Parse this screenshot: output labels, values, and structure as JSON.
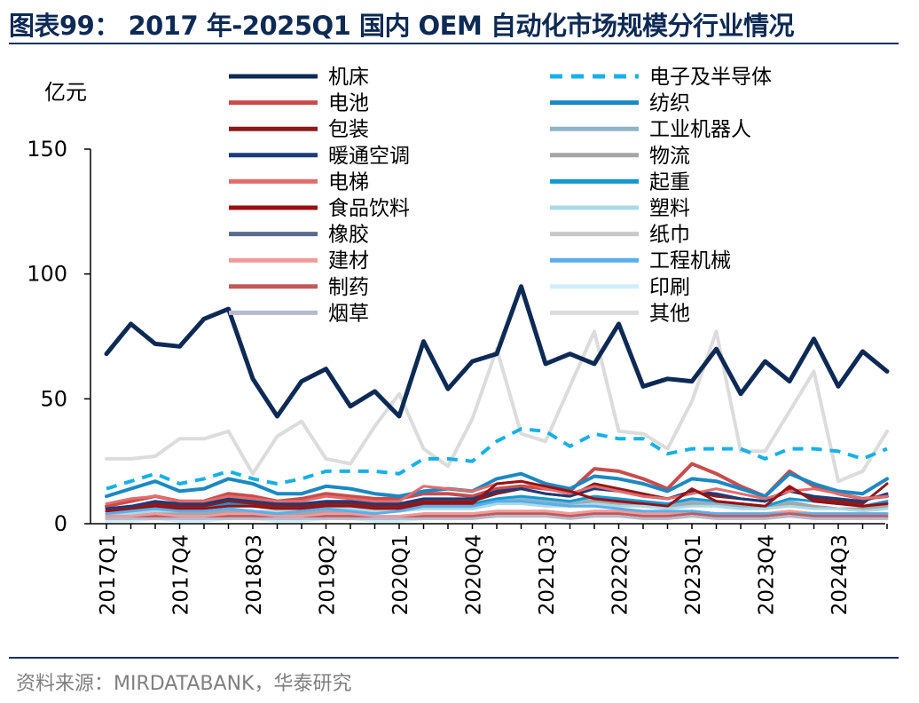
{
  "header": {
    "title": "图表99： 2017 年-2025Q1 国内 OEM 自动化市场规模分行业情况"
  },
  "footer": {
    "source": "资料来源：MIRDATABANK，华泰研究"
  },
  "chart_data": {
    "type": "line",
    "ylabel": "亿元",
    "ylim": [
      0,
      150
    ],
    "yticks": [
      0,
      50,
      100,
      150
    ],
    "legend_position": "top",
    "categories": [
      "2017Q1",
      "2017Q2",
      "2017Q3",
      "2017Q4",
      "2018Q1",
      "2018Q2",
      "2018Q3",
      "2018Q4",
      "2019Q1",
      "2019Q2",
      "2019Q3",
      "2019Q4",
      "2020Q1",
      "2020Q2",
      "2020Q3",
      "2020Q4",
      "2021Q1",
      "2021Q2",
      "2021Q3",
      "2021Q4",
      "2022Q1",
      "2022Q2",
      "2022Q3",
      "2022Q4",
      "2023Q1",
      "2023Q2",
      "2023Q3",
      "2023Q4",
      "2024Q1",
      "2024Q2",
      "2024Q3",
      "2024Q4",
      "2025Q1"
    ],
    "xtick_labels": [
      "2017Q1",
      "2017Q4",
      "2018Q3",
      "2019Q2",
      "2020Q1",
      "2020Q4",
      "2021Q3",
      "2022Q2",
      "2023Q1",
      "2023Q4",
      "2024Q3"
    ],
    "series": [
      {
        "name": "机床",
        "color": "#0d2a55",
        "width": 5,
        "dash": "",
        "values": [
          68,
          80,
          72,
          71,
          82,
          86,
          58,
          43,
          57,
          62,
          47,
          53,
          43,
          73,
          54,
          65,
          68,
          95,
          64,
          68,
          64,
          80,
          55,
          58,
          57,
          70,
          52,
          65,
          57,
          74,
          55,
          69,
          61
        ]
      },
      {
        "name": "电子及半导体",
        "color": "#17b0e6",
        "width": 4,
        "dash": "12,9",
        "values": [
          14,
          17,
          20,
          16,
          18,
          21,
          18,
          16,
          18,
          21,
          21,
          21,
          20,
          26,
          26,
          25,
          33,
          38,
          37,
          31,
          36,
          34,
          34,
          28,
          30,
          30,
          30,
          26,
          30,
          30,
          29,
          26,
          30
        ]
      },
      {
        "name": "电池",
        "color": "#c94c4c",
        "width": 4,
        "dash": "",
        "values": [
          7,
          9,
          11,
          9,
          9,
          12,
          11,
          9,
          10,
          12,
          11,
          10,
          10,
          12,
          12,
          11,
          14,
          15,
          14,
          13,
          22,
          21,
          18,
          14,
          24,
          20,
          15,
          11,
          21,
          15,
          12,
          10,
          11
        ]
      },
      {
        "name": "纺织",
        "color": "#1b88c2",
        "width": 4,
        "dash": "",
        "values": [
          11,
          14,
          17,
          13,
          14,
          18,
          16,
          12,
          12,
          15,
          14,
          12,
          11,
          13,
          14,
          13,
          18,
          20,
          16,
          14,
          19,
          18,
          16,
          13,
          18,
          17,
          14,
          11,
          20,
          16,
          13,
          12,
          18
        ]
      },
      {
        "name": "包装",
        "color": "#8b1a1a",
        "width": 3,
        "dash": "",
        "values": [
          6,
          7,
          8,
          7,
          7,
          9,
          8,
          7,
          7,
          8,
          8,
          7,
          7,
          9,
          9,
          9,
          12,
          14,
          12,
          11,
          16,
          14,
          12,
          10,
          13,
          11,
          10,
          9,
          14,
          10,
          9,
          8,
          16
        ]
      },
      {
        "name": "工业机器人",
        "color": "#8fb3c6",
        "width": 3,
        "dash": "",
        "values": [
          4,
          5,
          6,
          5,
          5,
          6,
          5,
          4,
          5,
          6,
          6,
          5,
          5,
          7,
          7,
          7,
          9,
          10,
          9,
          8,
          10,
          9,
          8,
          7,
          9,
          8,
          7,
          6,
          9,
          7,
          6,
          6,
          7
        ]
      },
      {
        "name": "暖通空调",
        "color": "#1a3c7a",
        "width": 3,
        "dash": "",
        "values": [
          6,
          7,
          9,
          8,
          8,
          10,
          9,
          8,
          8,
          9,
          9,
          8,
          8,
          10,
          10,
          10,
          13,
          14,
          12,
          11,
          14,
          13,
          11,
          10,
          13,
          12,
          10,
          9,
          13,
          11,
          10,
          9,
          12
        ]
      },
      {
        "name": "物流",
        "color": "#a6a6a6",
        "width": 3,
        "dash": "",
        "values": [
          3,
          4,
          5,
          4,
          4,
          5,
          5,
          4,
          4,
          5,
          5,
          5,
          5,
          6,
          6,
          6,
          8,
          9,
          8,
          7,
          9,
          8,
          7,
          6,
          8,
          7,
          6,
          6,
          8,
          7,
          6,
          6,
          7
        ]
      },
      {
        "name": "电梯",
        "color": "#e56b6b",
        "width": 3,
        "dash": "",
        "values": [
          8,
          10,
          11,
          9,
          9,
          11,
          10,
          9,
          9,
          11,
          10,
          9,
          9,
          15,
          14,
          13,
          16,
          17,
          14,
          12,
          15,
          13,
          11,
          10,
          12,
          14,
          12,
          10,
          13,
          14,
          12,
          10,
          11
        ]
      },
      {
        "name": "起重",
        "color": "#1199d6",
        "width": 3,
        "dash": "",
        "values": [
          5,
          6,
          7,
          6,
          6,
          8,
          7,
          6,
          6,
          7,
          7,
          6,
          6,
          8,
          8,
          8,
          10,
          11,
          10,
          9,
          11,
          10,
          9,
          8,
          10,
          9,
          8,
          7,
          10,
          9,
          8,
          7,
          9
        ]
      },
      {
        "name": "食品饮料",
        "color": "#9c0f0f",
        "width": 3,
        "dash": "",
        "values": [
          5,
          6,
          7,
          6,
          6,
          7,
          7,
          6,
          6,
          7,
          7,
          6,
          6,
          8,
          8,
          8,
          16,
          17,
          15,
          13,
          10,
          9,
          8,
          7,
          14,
          9,
          8,
          7,
          15,
          9,
          8,
          7,
          8
        ]
      },
      {
        "name": "塑料",
        "color": "#a9dbe6",
        "width": 3,
        "dash": "",
        "values": [
          4,
          4,
          5,
          5,
          5,
          6,
          5,
          5,
          5,
          6,
          6,
          5,
          5,
          6,
          6,
          6,
          8,
          8,
          7,
          7,
          8,
          7,
          7,
          6,
          7,
          7,
          6,
          6,
          7,
          6,
          6,
          5,
          6
        ]
      },
      {
        "name": "橡胶",
        "color": "#5a6a8f",
        "width": 3,
        "dash": "",
        "values": [
          3,
          3,
          4,
          3,
          3,
          4,
          4,
          3,
          3,
          4,
          4,
          3,
          3,
          4,
          4,
          4,
          5,
          5,
          5,
          4,
          5,
          5,
          4,
          4,
          5,
          4,
          4,
          4,
          5,
          4,
          4,
          4,
          4
        ]
      },
      {
        "name": "纸巾",
        "color": "#c8c8c8",
        "width": 3,
        "dash": "",
        "values": [
          2,
          3,
          3,
          3,
          3,
          3,
          3,
          3,
          3,
          3,
          3,
          3,
          3,
          4,
          4,
          4,
          5,
          5,
          5,
          4,
          5,
          5,
          4,
          4,
          5,
          4,
          4,
          4,
          5,
          4,
          4,
          4,
          4
        ]
      },
      {
        "name": "建材",
        "color": "#f29a9a",
        "width": 3,
        "dash": "",
        "values": [
          3,
          3,
          4,
          3,
          3,
          4,
          4,
          3,
          3,
          4,
          4,
          3,
          3,
          4,
          4,
          4,
          5,
          5,
          5,
          4,
          5,
          5,
          4,
          4,
          5,
          4,
          4,
          4,
          5,
          4,
          4,
          4,
          4
        ]
      },
      {
        "name": "工程机械",
        "color": "#5aaeea",
        "width": 3,
        "dash": "",
        "values": [
          4,
          5,
          6,
          5,
          5,
          6,
          5,
          4,
          5,
          6,
          5,
          4,
          5,
          7,
          7,
          7,
          9,
          9,
          8,
          7,
          7,
          6,
          5,
          5,
          5,
          4,
          4,
          4,
          4,
          4,
          4,
          4,
          4
        ]
      },
      {
        "name": "制药",
        "color": "#c25a5a",
        "width": 3,
        "dash": "",
        "values": [
          2,
          2,
          3,
          2,
          2,
          3,
          3,
          2,
          2,
          3,
          3,
          2,
          2,
          3,
          3,
          3,
          4,
          4,
          4,
          3,
          4,
          4,
          3,
          3,
          4,
          3,
          3,
          3,
          4,
          3,
          3,
          3,
          3
        ]
      },
      {
        "name": "印刷",
        "color": "#cfeefa",
        "width": 3,
        "dash": "",
        "values": [
          1,
          1,
          2,
          1,
          1,
          2,
          2,
          1,
          1,
          2,
          2,
          1,
          1,
          2,
          2,
          2,
          3,
          3,
          3,
          2,
          3,
          3,
          2,
          2,
          3,
          2,
          2,
          2,
          3,
          2,
          2,
          2,
          2
        ]
      },
      {
        "name": "烟草",
        "color": "#b7b9cc",
        "width": 3,
        "dash": "",
        "values": [
          2,
          2,
          2,
          2,
          2,
          2,
          2,
          2,
          2,
          2,
          2,
          2,
          2,
          2,
          2,
          2,
          3,
          3,
          3,
          2,
          3,
          3,
          2,
          2,
          3,
          2,
          2,
          2,
          3,
          2,
          2,
          2,
          2
        ]
      },
      {
        "name": "其他",
        "color": "#dcdcdc",
        "width": 4,
        "dash": "",
        "values": [
          26,
          26,
          27,
          34,
          34,
          37,
          20,
          35,
          41,
          26,
          24,
          39,
          52,
          30,
          23,
          42,
          70,
          36,
          33,
          55,
          77,
          37,
          36,
          30,
          49,
          77,
          29,
          29,
          45,
          61,
          17,
          21,
          37
        ]
      }
    ]
  }
}
